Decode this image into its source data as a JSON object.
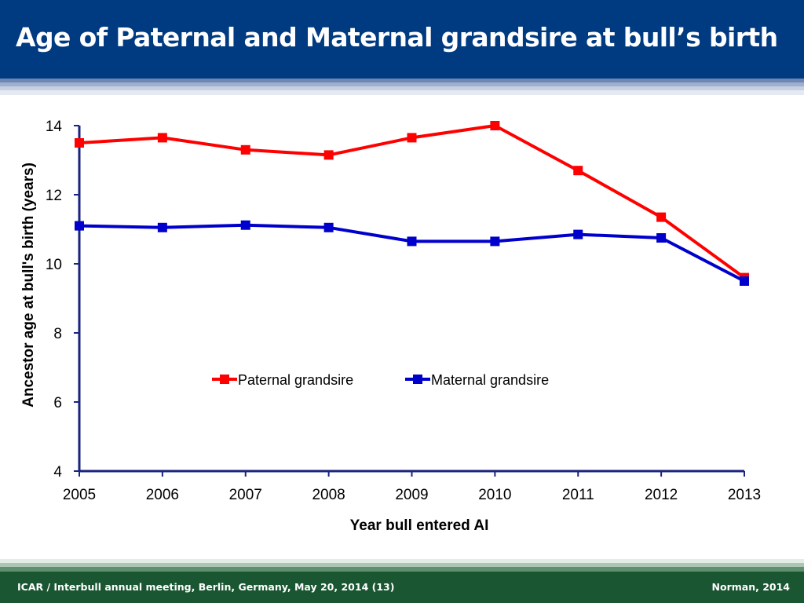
{
  "slide": {
    "title": "Age of Paternal and Maternal grandsire at bull’s birth",
    "footer_left": "ICAR / Interbull annual meeting, Berlin, Germany, May 20, 2014  (13)",
    "footer_right": "Norman, 2014"
  },
  "colors": {
    "header_bg": "#003a80",
    "footer_bg": "#1a5631",
    "paternal": "#ff0000",
    "maternal": "#0000cc",
    "axis": "#1a237e"
  },
  "chart_data": {
    "type": "line",
    "title": "",
    "xlabel": "Year  bull entered AI",
    "ylabel": "Ancestor age at bull's birth (years)",
    "ylim": [
      4,
      14
    ],
    "yticks": [
      4,
      6,
      8,
      10,
      12,
      14
    ],
    "categories": [
      "2005",
      "2006",
      "2007",
      "2008",
      "2009",
      "2010",
      "2011",
      "2012",
      "2013"
    ],
    "series": [
      {
        "name": "Paternal grandsire",
        "color": "#ff0000",
        "marker": "square",
        "values": [
          13.5,
          13.65,
          13.3,
          13.15,
          13.65,
          14.0,
          12.7,
          11.35,
          9.6
        ]
      },
      {
        "name": "Maternal grandsire",
        "color": "#0000cc",
        "marker": "square",
        "values": [
          11.1,
          11.05,
          11.12,
          11.05,
          10.65,
          10.65,
          10.85,
          10.75,
          9.5
        ]
      }
    ],
    "legend_position": "center",
    "grid": false
  }
}
